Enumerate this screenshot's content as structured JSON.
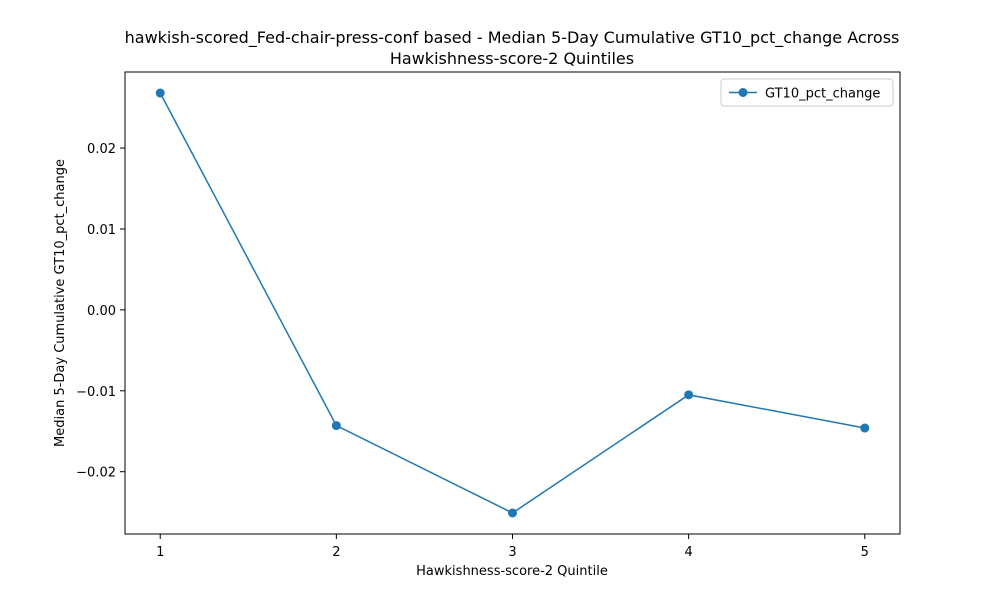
{
  "chart_data": {
    "type": "line",
    "title_lines": [
      "hawkish-scored_Fed-chair-press-conf based - Median 5-Day Cumulative GT10_pct_change Across",
      "Hawkishness-score-2 Quintiles"
    ],
    "xlabel": "Hawkishness-score-2 Quintile",
    "ylabel": "Median 5-Day Cumulative GT10_pct_change",
    "x": [
      1,
      2,
      3,
      4,
      5
    ],
    "xticks": [
      "1",
      "2",
      "3",
      "4",
      "5"
    ],
    "xlim": [
      0.8,
      5.2
    ],
    "ylim": [
      -0.0277,
      0.0294
    ],
    "yticks": [
      -0.02,
      -0.01,
      0.0,
      0.01,
      0.02
    ],
    "ytick_labels": [
      "−0.02",
      "−0.01",
      "0.00",
      "0.01",
      "0.02"
    ],
    "series": [
      {
        "name": "GT10_pct_change",
        "values": [
          0.0268,
          -0.0143,
          -0.0251,
          -0.0105,
          -0.0146
        ],
        "color": "#1f77b4",
        "marker": "circle"
      }
    ],
    "legend_position": "top-right",
    "grid": false
  }
}
